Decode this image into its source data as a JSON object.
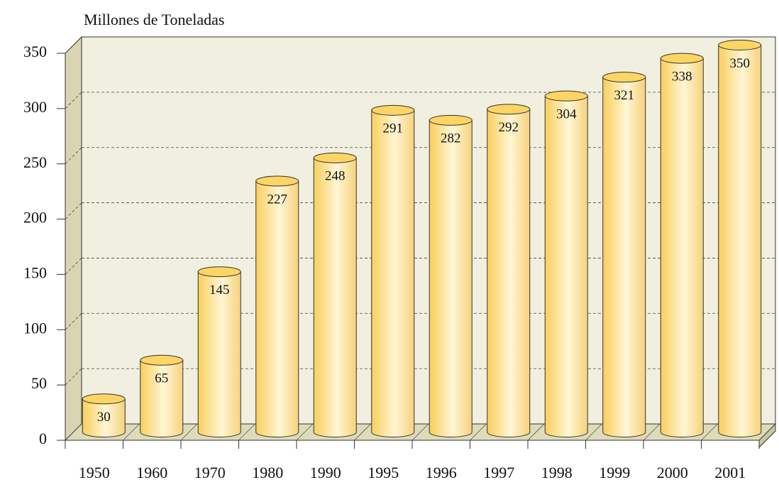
{
  "chart_data": {
    "type": "bar",
    "title": "Millones de Toneladas",
    "categories": [
      "1950",
      "1960",
      "1970",
      "1980",
      "1990",
      "1995",
      "1996",
      "1997",
      "1998",
      "1999",
      "2000",
      "2001"
    ],
    "values": [
      30,
      65,
      145,
      227,
      248,
      291,
      282,
      292,
      304,
      321,
      338,
      350
    ],
    "color": "#fcd565",
    "ylim": [
      0,
      350
    ],
    "yticks": [
      0,
      50,
      100,
      150,
      200,
      250,
      300,
      350
    ],
    "grid": true
  }
}
